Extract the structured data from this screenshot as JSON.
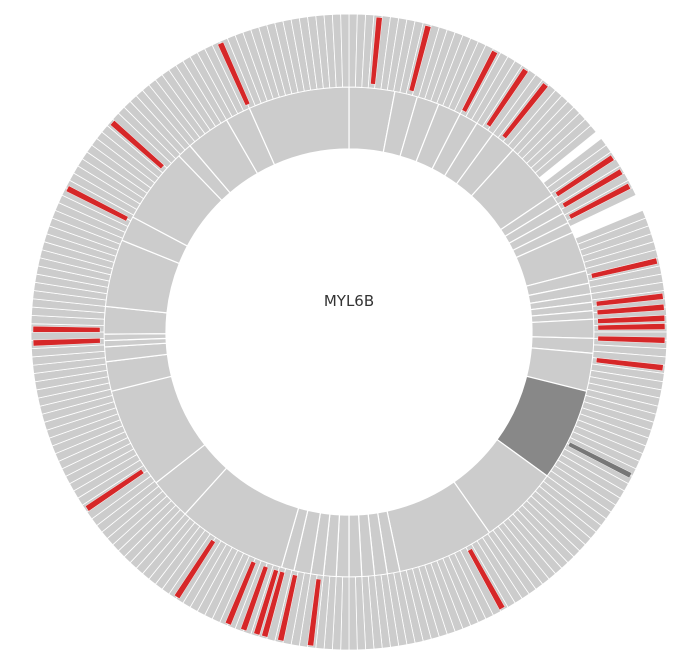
{
  "chart_data": {
    "type": "sunburst",
    "center_label": "MYL6B",
    "colors": {
      "default": "#cccccc",
      "highlight": "#d62728",
      "selected": "#888888",
      "selected_outer": "#777777",
      "stroke": "#ffffff"
    },
    "inner_ring": [
      {
        "start": 0.0,
        "end": 10.8
      },
      {
        "start": 10.8,
        "end": 16.2
      },
      {
        "start": 16.2,
        "end": 21.5
      },
      {
        "start": 21.5,
        "end": 27.0
      },
      {
        "start": 27.0,
        "end": 31.5
      },
      {
        "start": 31.5,
        "end": 36.0
      },
      {
        "start": 36.0,
        "end": 42.0
      },
      {
        "start": 42.0,
        "end": 56.0
      },
      {
        "start": 56.0,
        "end": 58.5
      },
      {
        "start": 58.5,
        "end": 61.0
      },
      {
        "start": 61.0,
        "end": 63.5
      },
      {
        "start": 63.5,
        "end": 66.0
      },
      {
        "start": 66.0,
        "end": 75.5
      },
      {
        "start": 75.5,
        "end": 78.5
      },
      {
        "start": 78.5,
        "end": 81.0
      },
      {
        "start": 81.0,
        "end": 83.0
      },
      {
        "start": 83.0,
        "end": 85.0
      },
      {
        "start": 85.0,
        "end": 87.0
      },
      {
        "start": 87.0,
        "end": 91.5
      },
      {
        "start": 91.5,
        "end": 95.0
      },
      {
        "start": 95.0,
        "end": 104.0
      },
      {
        "start": 104.0,
        "end": 126.0,
        "selected": true
      },
      {
        "start": 126.0,
        "end": 145.0
      },
      {
        "start": 145.0,
        "end": 168.0
      },
      {
        "start": 168.0,
        "end": 171.0
      },
      {
        "start": 171.0,
        "end": 174.0
      },
      {
        "start": 174.0,
        "end": 177.0
      },
      {
        "start": 177.0,
        "end": 180.0
      },
      {
        "start": 180.0,
        "end": 183.0
      },
      {
        "start": 183.0,
        "end": 186.0
      },
      {
        "start": 186.0,
        "end": 189.0
      },
      {
        "start": 189.0,
        "end": 193.0
      },
      {
        "start": 193.0,
        "end": 196.0
      },
      {
        "start": 196.0,
        "end": 222.0
      },
      {
        "start": 222.0,
        "end": 232.0
      },
      {
        "start": 232.0,
        "end": 256.0
      },
      {
        "start": 256.0,
        "end": 263.0
      },
      {
        "start": 263.0,
        "end": 266.5
      },
      {
        "start": 266.5,
        "end": 268.0
      },
      {
        "start": 268.0,
        "end": 269.5
      },
      {
        "start": 269.5,
        "end": 276.0
      },
      {
        "start": 276.0,
        "end": 292.0
      },
      {
        "start": 292.0,
        "end": 298.0
      },
      {
        "start": 298.0,
        "end": 316.0
      },
      {
        "start": 316.0,
        "end": 319.5
      },
      {
        "start": 319.5,
        "end": 330.0
      },
      {
        "start": 330.0,
        "end": 336.0
      },
      {
        "start": 336.0,
        "end": 360.0
      }
    ],
    "outer_ring": {
      "segment_count": 240,
      "highlighted": [
        {
          "angle": 5.5
        },
        {
          "angle": 14.5
        },
        {
          "angle": 27.5
        },
        {
          "angle": 34.0
        },
        {
          "angle": 38.5
        },
        {
          "angle": 56.5
        },
        {
          "angle": 59.5
        },
        {
          "angle": 62.5
        },
        {
          "angle": 77.0
        },
        {
          "angle": 83.5
        },
        {
          "angle": 85.5
        },
        {
          "angle": 87.5
        },
        {
          "angle": 89.0
        },
        {
          "angle": 91.5
        },
        {
          "angle": 96.5
        },
        {
          "angle": 151.0
        },
        {
          "angle": 187.0
        },
        {
          "angle": 192.5
        },
        {
          "angle": 195.5
        },
        {
          "angle": 197.0
        },
        {
          "angle": 199.5
        },
        {
          "angle": 202.5
        },
        {
          "angle": 213.0
        },
        {
          "angle": 236.0
        },
        {
          "angle": 268.0
        },
        {
          "angle": 270.5
        },
        {
          "angle": 297.0
        },
        {
          "angle": 311.5
        },
        {
          "angle": 336.0
        }
      ],
      "gaps": [
        {
          "start": 50.5,
          "end": 53.0
        },
        {
          "start": 65.0,
          "end": 67.0
        }
      ],
      "selected_band": {
        "start": 104.0,
        "end": 126.0
      },
      "selected_line": {
        "angle": 117.0
      }
    }
  }
}
